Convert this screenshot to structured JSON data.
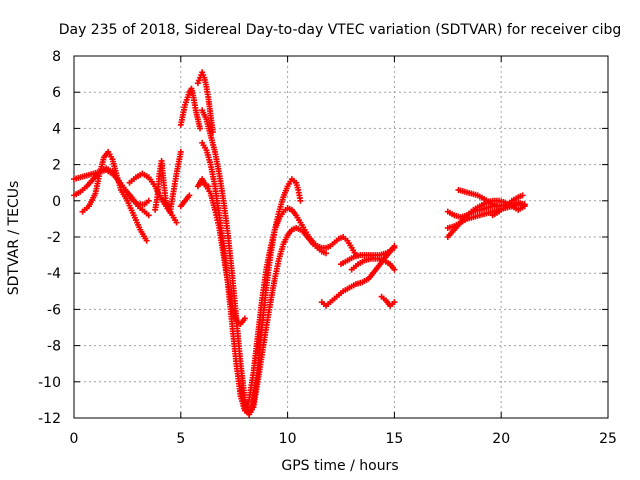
{
  "chart_data": {
    "type": "scatter",
    "title": "Day 235 of 2018, Sidereal Day-to-day VTEC variation (SDTVAR) for receiver cibg",
    "xlabel": "GPS time / hours",
    "ylabel": "SDTVAR / TECUs",
    "xlim": [
      0,
      25
    ],
    "ylim": [
      -12,
      8
    ],
    "xticks": [
      0,
      5,
      10,
      15,
      20,
      25
    ],
    "yticks": [
      -12,
      -10,
      -8,
      -6,
      -4,
      -2,
      0,
      2,
      4,
      6,
      8
    ],
    "grid": true,
    "marker": "plus",
    "color": "#ff0000",
    "series": [
      {
        "x": [
          0.0,
          0.3,
          0.6,
          0.9,
          1.2,
          1.5,
          1.8,
          2.1,
          2.4,
          2.7,
          3.0,
          3.3,
          3.5
        ],
        "y": [
          1.2,
          1.3,
          1.4,
          1.5,
          1.6,
          1.7,
          1.5,
          1.1,
          0.6,
          0.1,
          -0.2,
          -0.2,
          0.0
        ]
      },
      {
        "x": [
          0.0,
          0.3,
          0.6,
          0.9,
          1.2,
          1.5,
          1.8,
          2.1,
          2.4,
          2.7,
          3.0,
          3.3,
          3.5
        ],
        "y": [
          0.3,
          0.5,
          0.8,
          1.2,
          1.6,
          1.8,
          1.6,
          1.1,
          0.6,
          0.2,
          -0.3,
          -0.6,
          -0.8
        ]
      },
      {
        "x": [
          0.4,
          0.7,
          1.0,
          1.2,
          1.4,
          1.6,
          1.8,
          2.0,
          2.2,
          2.5,
          2.8,
          3.1,
          3.4
        ],
        "y": [
          -0.6,
          -0.3,
          0.4,
          1.5,
          2.4,
          2.7,
          2.3,
          1.4,
          0.6,
          0.0,
          -0.8,
          -1.6,
          -2.2
        ]
      },
      {
        "x": [
          2.6,
          2.9,
          3.2,
          3.5,
          3.8,
          4.0,
          4.3,
          4.6,
          4.8
        ],
        "y": [
          1.0,
          1.3,
          1.5,
          1.3,
          0.8,
          0.3,
          -0.3,
          -0.8,
          -1.2
        ]
      },
      {
        "x": [
          3.8,
          3.9,
          4.0,
          4.1,
          4.2,
          4.3,
          4.5,
          4.8,
          5.0
        ],
        "y": [
          -0.5,
          0.2,
          1.5,
          2.2,
          1.0,
          0.0,
          -0.6,
          1.5,
          2.7
        ]
      },
      {
        "x": [
          5.0,
          5.2,
          5.4,
          5.5,
          5.6,
          5.7,
          5.8,
          5.9
        ],
        "y": [
          4.2,
          5.3,
          6.0,
          6.2,
          5.7,
          5.0,
          4.5,
          4.0
        ]
      },
      {
        "x": [
          5.8,
          5.9,
          6.0,
          6.1,
          6.2,
          6.3,
          6.4,
          6.5
        ],
        "y": [
          6.5,
          6.8,
          7.1,
          6.8,
          6.3,
          5.6,
          4.7,
          3.8
        ]
      },
      {
        "x": [
          5.0,
          5.2,
          5.4
        ],
        "y": [
          -0.3,
          0.0,
          0.3
        ]
      },
      {
        "x": [
          5.8,
          5.9,
          6.0,
          6.1,
          6.2,
          6.3
        ],
        "y": [
          0.8,
          1.0,
          1.2,
          1.0,
          0.8,
          0.8
        ]
      },
      {
        "x": [
          6.0,
          6.2,
          6.4,
          6.6,
          6.8,
          7.0,
          7.2,
          7.4,
          7.6,
          7.8,
          8.0,
          8.2,
          8.4,
          8.6,
          8.8,
          9.0,
          9.2,
          9.4,
          9.6,
          9.8,
          10.0,
          10.2,
          10.4,
          10.5,
          10.6
        ],
        "y": [
          5.0,
          4.5,
          3.6,
          2.7,
          1.5,
          0.0,
          -1.8,
          -4.0,
          -6.5,
          -9.0,
          -11.0,
          -11.8,
          -11.2,
          -9.5,
          -7.0,
          -4.8,
          -3.0,
          -1.6,
          -0.6,
          0.2,
          0.8,
          1.2,
          1.0,
          0.6,
          0.0
        ]
      },
      {
        "x": [
          6.0,
          6.2,
          6.4,
          6.6,
          6.8,
          7.0,
          7.2,
          7.4,
          7.6,
          7.8,
          8.0,
          8.2,
          8.4,
          8.6,
          8.8,
          9.0,
          9.2,
          9.4,
          9.6,
          9.8,
          10.0,
          10.2,
          10.4,
          10.6,
          10.8,
          11.0,
          11.2,
          11.4,
          11.6,
          11.8,
          12.0,
          12.2,
          12.4,
          12.6,
          12.8,
          13.0,
          13.2
        ],
        "y": [
          3.2,
          2.8,
          2.0,
          0.8,
          -0.8,
          -2.5,
          -4.5,
          -6.8,
          -9.0,
          -10.8,
          -11.6,
          -11.0,
          -9.5,
          -7.5,
          -5.5,
          -3.8,
          -2.6,
          -1.6,
          -1.0,
          -0.6,
          -0.4,
          -0.5,
          -0.8,
          -1.2,
          -1.6,
          -2.0,
          -2.3,
          -2.5,
          -2.6,
          -2.6,
          -2.5,
          -2.3,
          -2.1,
          -2.0,
          -2.2,
          -2.6,
          -3.0
        ]
      },
      {
        "x": [
          6.0,
          6.2,
          6.4,
          6.6,
          6.8,
          7.0,
          7.2,
          7.4,
          7.6,
          7.8,
          8.0
        ],
        "y": [
          1.0,
          0.8,
          0.4,
          -0.5,
          -1.5,
          -3.0,
          -4.5,
          -5.8,
          -6.6,
          -6.8,
          -6.5
        ]
      },
      {
        "x": [
          7.8,
          8.0,
          8.2,
          8.4,
          8.6,
          8.8,
          9.0,
          9.2,
          9.4,
          9.6,
          9.8,
          10.0,
          10.2,
          10.4,
          10.6,
          10.8,
          11.0,
          11.2,
          11.4,
          11.6,
          11.8
        ],
        "y": [
          -10.5,
          -11.5,
          -11.8,
          -11.4,
          -10.0,
          -8.5,
          -7.0,
          -5.6,
          -4.3,
          -3.2,
          -2.4,
          -1.9,
          -1.6,
          -1.5,
          -1.6,
          -1.8,
          -2.1,
          -2.4,
          -2.6,
          -2.8,
          -2.9
        ]
      },
      {
        "x": [
          11.6,
          11.8,
          12.0,
          12.3,
          12.6,
          12.9,
          13.2,
          13.5,
          13.8,
          14.0,
          14.2,
          14.4,
          14.6,
          14.8,
          15.0
        ],
        "y": [
          -5.6,
          -5.8,
          -5.6,
          -5.3,
          -5.0,
          -4.8,
          -4.6,
          -4.5,
          -4.3,
          -4.0,
          -3.7,
          -3.4,
          -3.1,
          -2.8,
          -2.5
        ]
      },
      {
        "x": [
          12.5,
          12.8,
          13.1,
          13.4,
          13.7,
          14.0,
          14.3,
          14.6,
          14.9,
          15.0
        ],
        "y": [
          -3.5,
          -3.3,
          -3.1,
          -3.0,
          -3.0,
          -3.0,
          -3.0,
          -2.9,
          -2.7,
          -2.6
        ]
      },
      {
        "x": [
          13.0,
          13.3,
          13.6,
          13.9,
          14.2,
          14.5,
          14.8,
          15.0
        ],
        "y": [
          -3.8,
          -3.5,
          -3.3,
          -3.2,
          -3.2,
          -3.3,
          -3.5,
          -3.8
        ]
      },
      {
        "x": [
          14.4,
          14.6,
          14.8,
          15.0
        ],
        "y": [
          -5.3,
          -5.5,
          -5.8,
          -5.6
        ]
      },
      {
        "x": [
          17.5,
          17.8,
          18.1,
          18.4,
          18.7,
          19.0,
          19.3,
          19.6,
          19.9,
          20.2,
          20.5,
          20.8,
          21.1
        ],
        "y": [
          -0.6,
          -0.8,
          -0.9,
          -0.8,
          -0.6,
          -0.5,
          -0.4,
          -0.3,
          -0.3,
          -0.2,
          -0.2,
          -0.1,
          -0.2
        ]
      },
      {
        "x": [
          17.5,
          17.8,
          18.1,
          18.4,
          18.7,
          19.0,
          19.3,
          19.6,
          19.9,
          20.2,
          20.5,
          20.8,
          21.1
        ],
        "y": [
          -1.5,
          -1.4,
          -1.2,
          -1.0,
          -0.9,
          -0.8,
          -0.7,
          -0.6,
          -0.5,
          -0.4,
          -0.3,
          -0.2,
          -0.2
        ]
      },
      {
        "x": [
          17.5,
          17.8,
          18.1,
          18.4,
          18.7,
          19.0,
          19.3,
          19.6,
          19.9,
          20.2,
          20.5,
          20.8,
          21.1
        ],
        "y": [
          -2.0,
          -1.6,
          -1.2,
          -0.8,
          -0.5,
          -0.3,
          -0.1,
          0.0,
          0.0,
          -0.1,
          -0.3,
          -0.5,
          -0.3
        ]
      },
      {
        "x": [
          18.0,
          18.3,
          18.6,
          18.9,
          19.2,
          19.5,
          19.8
        ],
        "y": [
          0.6,
          0.5,
          0.4,
          0.3,
          0.1,
          -0.1,
          -0.3
        ]
      },
      {
        "x": [
          19.6,
          19.9,
          20.2,
          20.5,
          20.8,
          21.0
        ],
        "y": [
          -0.8,
          -0.6,
          -0.3,
          0.0,
          0.2,
          0.3
        ]
      }
    ]
  }
}
